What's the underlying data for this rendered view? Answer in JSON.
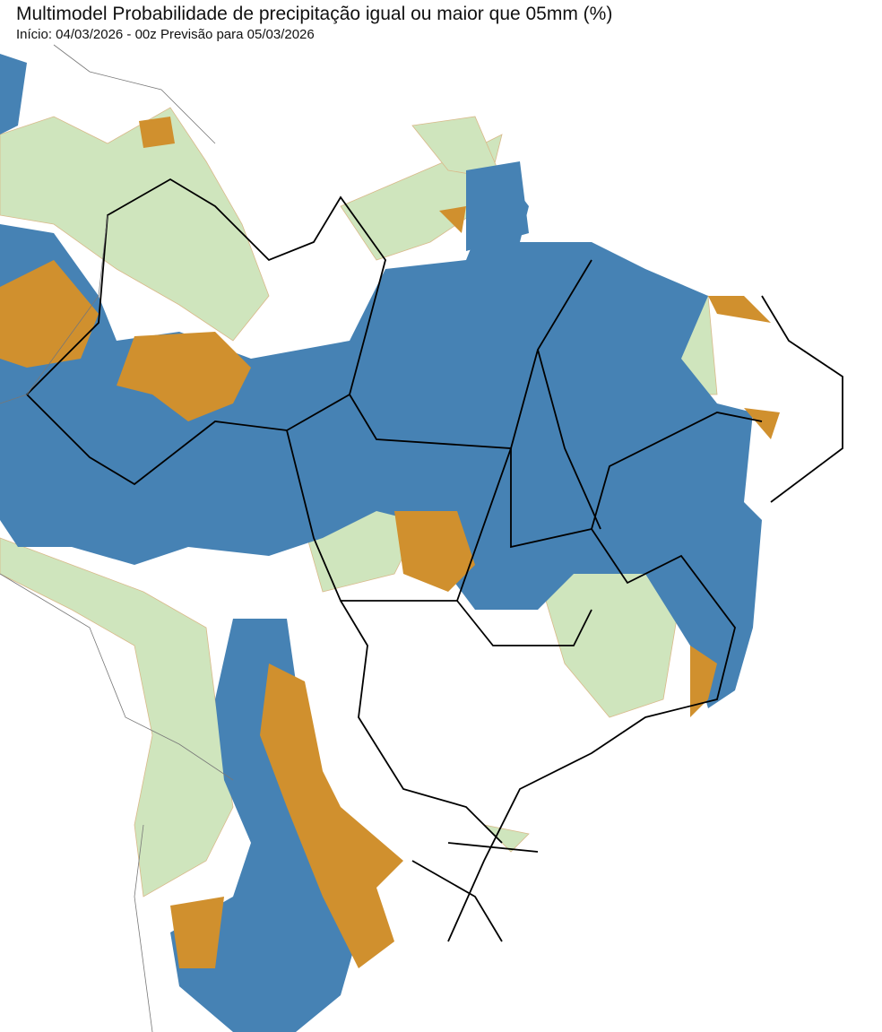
{
  "header": {
    "title": "Multimodel Probabilidade de precipitação igual ou maior que 05mm (%)",
    "subtitle": "Início: 04/03/2026 - 00z  Previsão para 05/03/2026"
  },
  "map": {
    "region": "Brazil / South America",
    "colors": {
      "high_probability": "#4682b4",
      "medium_probability": "#d0902e",
      "low_probability": "#cfe5bd",
      "borders": "#000000",
      "background": "#ffffff"
    }
  }
}
